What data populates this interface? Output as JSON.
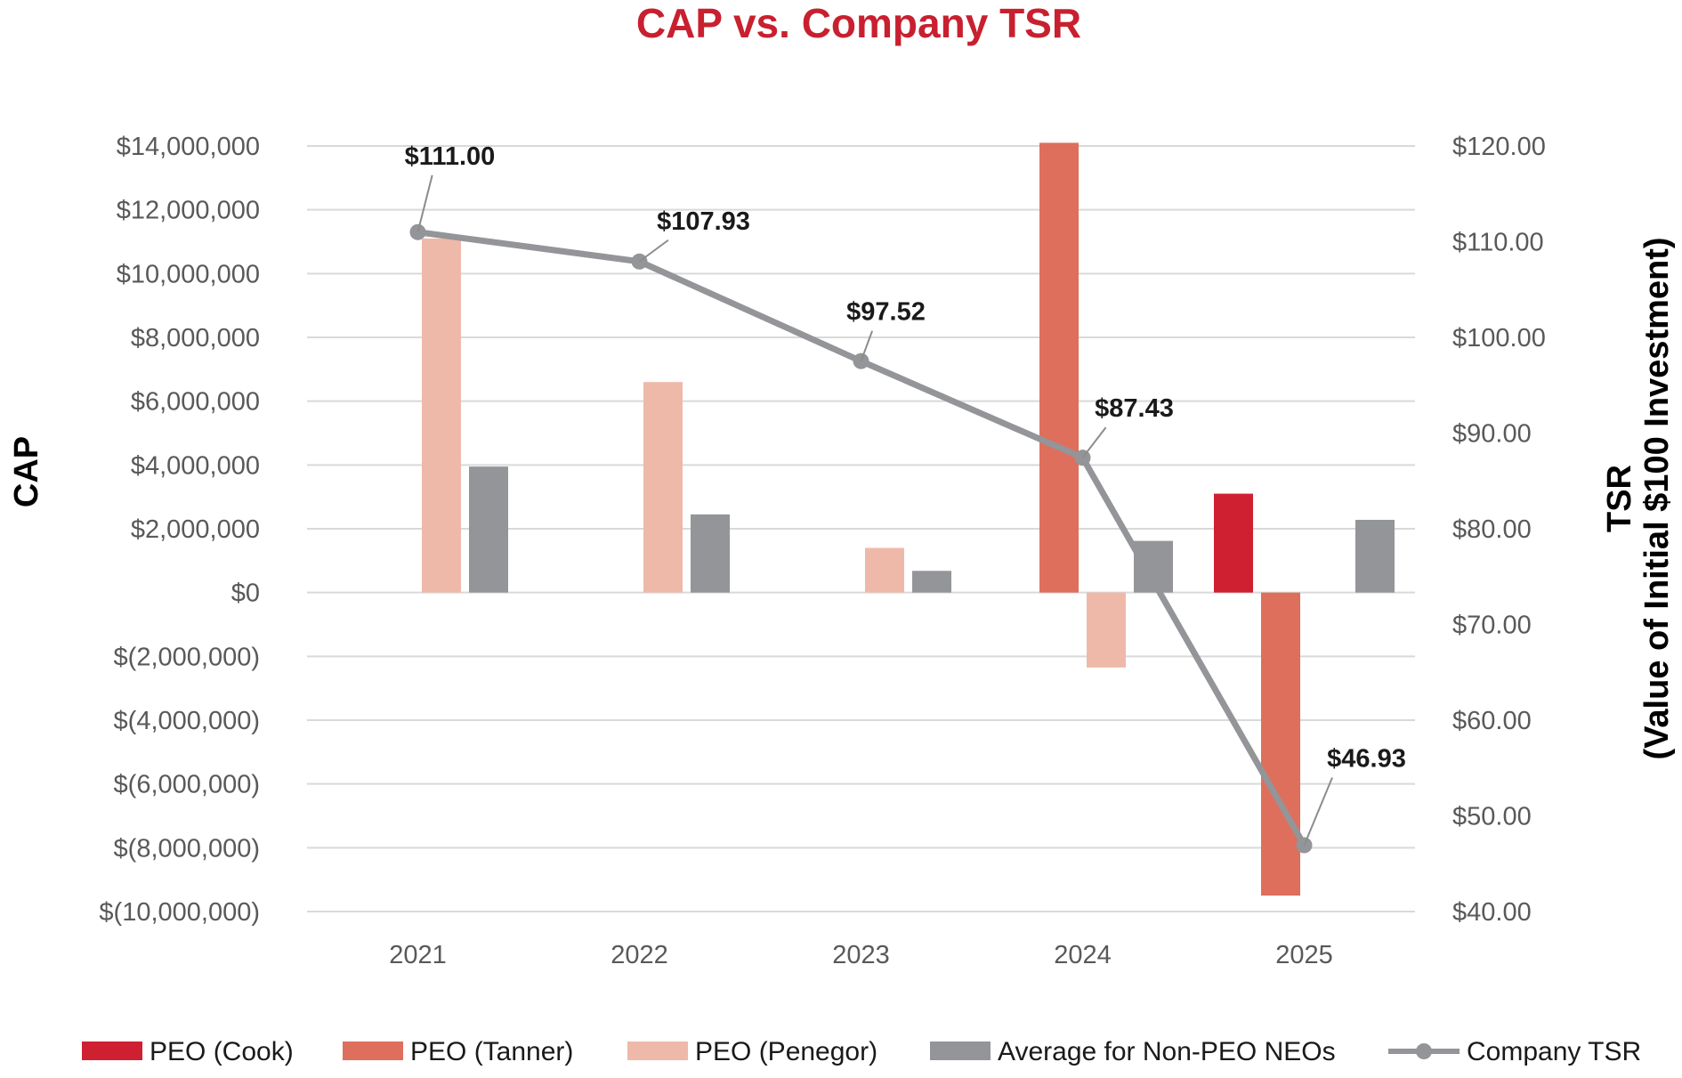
{
  "chart_data": {
    "type": "bar",
    "title": "CAP vs. Company TSR",
    "title_color": "#c8202f",
    "categories": [
      "2021",
      "2022",
      "2023",
      "2024",
      "2025"
    ],
    "y_left": {
      "label": "CAP",
      "range": [
        -10000000,
        14000000
      ],
      "ticks": [
        14000000,
        12000000,
        10000000,
        8000000,
        6000000,
        4000000,
        2000000,
        0,
        -2000000,
        -4000000,
        -6000000,
        -8000000,
        -10000000
      ],
      "tick_labels": [
        "$14,000,000",
        "$12,000,000",
        "$10,000,000",
        "$8,000,000",
        "$6,000,000",
        "$4,000,000",
        "$2,000,000",
        "$0",
        "$(2,000,000)",
        "$(4,000,000)",
        "$(6,000,000)",
        "$(8,000,000)",
        "$(10,000,000)"
      ]
    },
    "y_right": {
      "label_line1": "TSR",
      "label_line2": "(Value of Initial $100 Investment)",
      "range": [
        40,
        120
      ],
      "ticks": [
        120,
        110,
        100,
        90,
        80,
        70,
        60,
        50,
        40
      ],
      "tick_labels": [
        "$120.00",
        "$110.00",
        "$100.00",
        "$90.00",
        "$80.00",
        "$70.00",
        "$60.00",
        "$50.00",
        "$40.00"
      ]
    },
    "grid": true,
    "legend_position": "bottom",
    "series": [
      {
        "name": "PEO (Cook)",
        "type": "bar",
        "color": "#cf2032",
        "values": [
          null,
          null,
          null,
          null,
          3100000
        ]
      },
      {
        "name": "PEO (Tanner)",
        "type": "bar",
        "color": "#de6f5c",
        "values": [
          null,
          null,
          null,
          14100000,
          -9500000
        ]
      },
      {
        "name": "PEO (Penegor)",
        "type": "bar",
        "color": "#efb9aa",
        "values": [
          11100000,
          6600000,
          1400000,
          -2350000,
          null
        ]
      },
      {
        "name": "Average for Non-PEO NEOs",
        "type": "bar",
        "color": "#939598",
        "values": [
          3950000,
          2450000,
          680000,
          1620000,
          2280000
        ]
      },
      {
        "name": "Company TSR",
        "type": "line",
        "axis": "right",
        "color": "#939598",
        "values": [
          111.0,
          107.93,
          97.52,
          87.43,
          46.93
        ],
        "labels": [
          "$111.00",
          "$107.93",
          "$97.52",
          "$87.43",
          "$46.93"
        ]
      }
    ]
  }
}
